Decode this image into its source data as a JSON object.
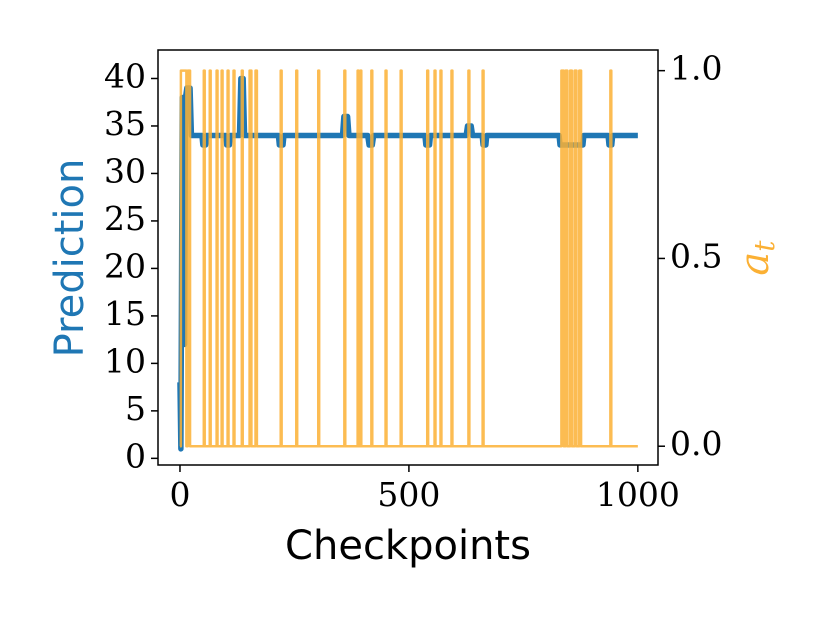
{
  "chart_data": {
    "type": "line",
    "xlabel": "Checkpoints",
    "ylabel": "Prediction",
    "y2label": "a",
    "y2label_subscript": "t",
    "xlim": [
      -48,
      1044
    ],
    "xticks": [
      0,
      500,
      1000
    ],
    "ylim": [
      -0.7,
      43
    ],
    "yticks": [
      0,
      5,
      10,
      15,
      20,
      25,
      30,
      35,
      40
    ],
    "y2lim": [
      -0.05,
      1.055
    ],
    "y2ticks": [
      {
        "value": 0,
        "label": "0.0"
      },
      0.5,
      {
        "value": 1,
        "label": "1.0"
      }
    ],
    "ylabel_color": "#1f77b4",
    "y2label_color": "#fbb034",
    "series": [
      {
        "color": "#1f77b4",
        "axis": "y",
        "x": [
          0,
          2,
          5,
          8,
          10,
          12,
          15,
          22,
          25,
          48,
          50,
          56,
          58,
          100,
          102,
          108,
          110,
          130,
          133,
          138,
          141,
          215,
          217,
          225,
          227,
          355,
          358,
          366,
          369,
          410,
          413,
          420,
          423,
          535,
          537,
          545,
          547,
          625,
          628,
          636,
          639,
          660,
          662,
          668,
          670,
          828,
          830,
          880,
          882,
          935,
          937,
          943,
          945,
          1000
        ],
        "values": [
          8,
          1,
          38,
          36,
          12,
          38,
          39,
          39,
          34,
          34,
          33,
          33,
          34,
          34,
          33,
          33,
          34,
          34,
          40,
          40,
          34,
          34,
          33,
          33,
          34,
          34,
          36,
          36,
          34,
          34,
          33,
          33,
          34,
          34,
          33,
          33,
          34,
          34,
          35,
          35,
          34,
          34,
          33,
          33,
          34,
          34,
          33,
          33,
          34,
          34,
          33,
          33,
          34,
          34
        ]
      },
      {
        "color": "#fbb034",
        "axis": "y2",
        "x": [
          0,
          2,
          2,
          14,
          14,
          17,
          17,
          22,
          22,
          52,
          52,
          54,
          54,
          65,
          65,
          67,
          67,
          80,
          80,
          82,
          82,
          91,
          91,
          93,
          93,
          104,
          104,
          106,
          106,
          117,
          117,
          119,
          119,
          135,
          135,
          137,
          137,
          152,
          152,
          156,
          156,
          165,
          165,
          168,
          168,
          220,
          220,
          222,
          222,
          254,
          254,
          256,
          256,
          302,
          302,
          304,
          304,
          359,
          359,
          361,
          361,
          388,
          388,
          390,
          390,
          394,
          394,
          396,
          396,
          418,
          418,
          420,
          420,
          449,
          449,
          451,
          451,
          482,
          482,
          484,
          484,
          540,
          540,
          542,
          542,
          556,
          556,
          558,
          558,
          569,
          569,
          571,
          571,
          593,
          593,
          595,
          595,
          630,
          630,
          632,
          632,
          661,
          661,
          663,
          663,
          833,
          833,
          838,
          838,
          842,
          842,
          846,
          846,
          852,
          852,
          856,
          856,
          862,
          862,
          866,
          866,
          872,
          872,
          876,
          876,
          940,
          940,
          942,
          942,
          1000
        ],
        "values": [
          0,
          0,
          1,
          1,
          0,
          0,
          1,
          1,
          0,
          0,
          1,
          1,
          0,
          0,
          1,
          1,
          0,
          0,
          1,
          1,
          0,
          0,
          1,
          1,
          0,
          0,
          1,
          1,
          0,
          0,
          1,
          1,
          0,
          0,
          1,
          1,
          0,
          0,
          1,
          1,
          0,
          0,
          1,
          1,
          0,
          0,
          1,
          1,
          0,
          0,
          1,
          1,
          0,
          0,
          1,
          1,
          0,
          0,
          1,
          1,
          0,
          0,
          1,
          1,
          0,
          0,
          1,
          1,
          0,
          0,
          1,
          1,
          0,
          0,
          1,
          1,
          0,
          0,
          1,
          1,
          0,
          0,
          1,
          1,
          0,
          0,
          1,
          1,
          0,
          0,
          1,
          1,
          0,
          0,
          1,
          1,
          0,
          0,
          1,
          1,
          0,
          0,
          1,
          1,
          0,
          0,
          1,
          1,
          0,
          0,
          1,
          1,
          0,
          0,
          1,
          1,
          0,
          0,
          1,
          1,
          0,
          0,
          1,
          1,
          0,
          0,
          1,
          1,
          0,
          0
        ]
      }
    ]
  }
}
